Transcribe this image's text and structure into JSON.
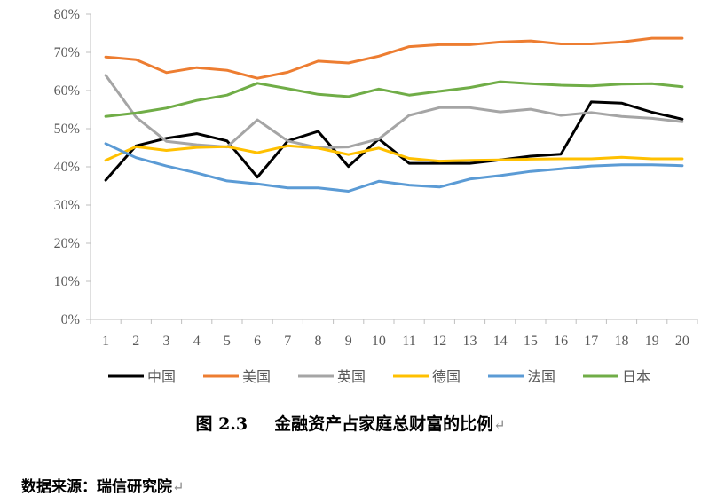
{
  "chart_data": {
    "type": "line",
    "x": [
      1,
      2,
      3,
      4,
      5,
      6,
      7,
      8,
      9,
      10,
      11,
      12,
      13,
      14,
      15,
      16,
      17,
      18,
      19,
      20
    ],
    "ylim": [
      0,
      0.8
    ],
    "yticks": [
      "0%",
      "10%",
      "20%",
      "30%",
      "40%",
      "50%",
      "60%",
      "70%",
      "80%"
    ],
    "grid": false,
    "legend_position": "bottom",
    "series": [
      {
        "name": "中国",
        "color": "#000000",
        "values": [
          0.365,
          0.455,
          0.475,
          0.487,
          0.468,
          0.373,
          0.468,
          0.493,
          0.401,
          0.473,
          0.409,
          0.409,
          0.409,
          0.418,
          0.428,
          0.433,
          0.57,
          0.567,
          0.543,
          0.525
        ]
      },
      {
        "name": "美国",
        "color": "#ED7D31",
        "values": [
          0.688,
          0.681,
          0.647,
          0.66,
          0.653,
          0.632,
          0.648,
          0.677,
          0.672,
          0.69,
          0.715,
          0.72,
          0.72,
          0.727,
          0.73,
          0.722,
          0.722,
          0.727,
          0.737,
          0.737
        ]
      },
      {
        "name": "英国",
        "color": "#A5A5A5",
        "values": [
          0.64,
          0.53,
          0.467,
          0.458,
          0.452,
          0.523,
          0.468,
          0.45,
          0.452,
          0.473,
          0.535,
          0.555,
          0.555,
          0.544,
          0.551,
          0.535,
          0.542,
          0.532,
          0.527,
          0.518
        ]
      },
      {
        "name": "德国",
        "color": "#FFC000",
        "values": [
          0.417,
          0.453,
          0.443,
          0.451,
          0.453,
          0.437,
          0.455,
          0.449,
          0.432,
          0.449,
          0.422,
          0.415,
          0.417,
          0.418,
          0.42,
          0.421,
          0.421,
          0.425,
          0.421,
          0.421
        ]
      },
      {
        "name": "法国",
        "color": "#5B9BD5",
        "values": [
          0.461,
          0.424,
          0.402,
          0.384,
          0.363,
          0.355,
          0.345,
          0.345,
          0.336,
          0.362,
          0.352,
          0.347,
          0.368,
          0.377,
          0.388,
          0.395,
          0.402,
          0.405,
          0.405,
          0.403
        ]
      },
      {
        "name": "日本",
        "color": "#70AD47",
        "values": [
          0.532,
          0.541,
          0.554,
          0.574,
          0.588,
          0.619,
          0.605,
          0.59,
          0.584,
          0.604,
          0.588,
          0.598,
          0.608,
          0.623,
          0.618,
          0.614,
          0.612,
          0.617,
          0.618,
          0.61
        ]
      }
    ]
  },
  "caption": {
    "label": "图 2.3",
    "text": "金融资产占家庭总财富的比例",
    "return_mark": "↵"
  },
  "source": {
    "text": "数据来源：瑞信研究院",
    "return_mark": "↵"
  }
}
